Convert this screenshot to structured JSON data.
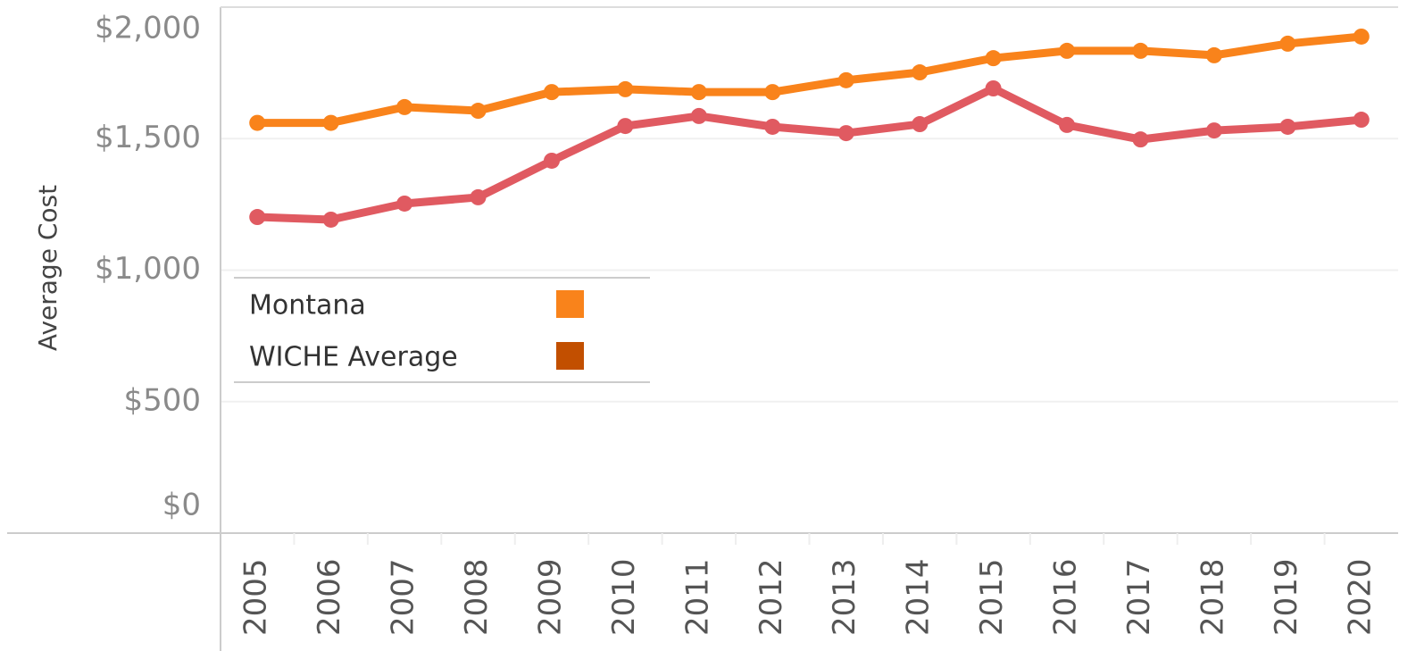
{
  "chart_data": {
    "type": "line",
    "y_label": "Average Cost",
    "categories": [
      "2005",
      "2006",
      "2007",
      "2008",
      "2009",
      "2010",
      "2011",
      "2012",
      "2013",
      "2014",
      "2015",
      "2016",
      "2017",
      "2018",
      "2019",
      "2020"
    ],
    "series": [
      {
        "name": "Montana",
        "color": "#f9831b",
        "swatch_color": "#f9831b",
        "values": [
          1560,
          1560,
          1620,
          1606,
          1677,
          1688,
          1677,
          1677,
          1722,
          1752,
          1806,
          1834,
          1834,
          1817,
          1861,
          1888
        ]
      },
      {
        "name": "WICHE Average",
        "color": "#e05a61",
        "swatch_color": "#c24f00",
        "values": [
          1202,
          1192,
          1253,
          1277,
          1416,
          1548,
          1586,
          1545,
          1521,
          1555,
          1691,
          1552,
          1497,
          1531,
          1545,
          1572
        ]
      }
    ],
    "ylim": [
      0,
      2000
    ],
    "yticks": [
      {
        "value": 0,
        "label": "$0"
      },
      {
        "value": 500,
        "label": "$500"
      },
      {
        "value": 1000,
        "label": "$1,000"
      },
      {
        "value": 1500,
        "label": "$1,500"
      },
      {
        "value": 2000,
        "label": "$2,000"
      }
    ],
    "grid": true
  }
}
